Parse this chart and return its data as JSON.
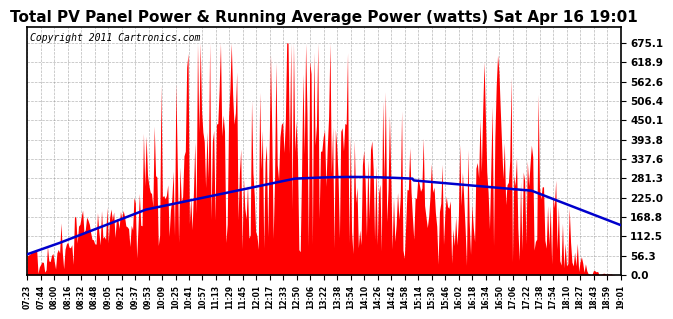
{
  "title": "Total PV Panel Power & Running Average Power (watts) Sat Apr 16 19:01",
  "copyright": "Copyright 2011 Cartronics.com",
  "yticks": [
    0.0,
    56.3,
    112.5,
    168.8,
    225.0,
    281.3,
    337.6,
    393.8,
    450.1,
    506.4,
    562.6,
    618.9,
    675.1
  ],
  "ylim": [
    0,
    720
  ],
  "bar_color": "#FF0000",
  "line_color": "#0000CC",
  "background_color": "#FFFFFF",
  "grid_color": "#888888",
  "title_fontsize": 11,
  "copyright_fontsize": 7,
  "x_tick_labels": [
    "07:23",
    "07:44",
    "08:00",
    "08:16",
    "08:32",
    "08:48",
    "09:05",
    "09:21",
    "09:37",
    "09:53",
    "10:09",
    "10:25",
    "10:41",
    "10:57",
    "11:13",
    "11:29",
    "11:45",
    "12:01",
    "12:17",
    "12:33",
    "12:50",
    "13:06",
    "13:22",
    "13:38",
    "13:54",
    "14:10",
    "14:26",
    "14:42",
    "14:58",
    "15:14",
    "15:30",
    "15:46",
    "16:02",
    "16:18",
    "16:34",
    "16:50",
    "17:06",
    "17:22",
    "17:38",
    "17:54",
    "18:10",
    "18:27",
    "18:43",
    "18:59",
    "19:01"
  ]
}
